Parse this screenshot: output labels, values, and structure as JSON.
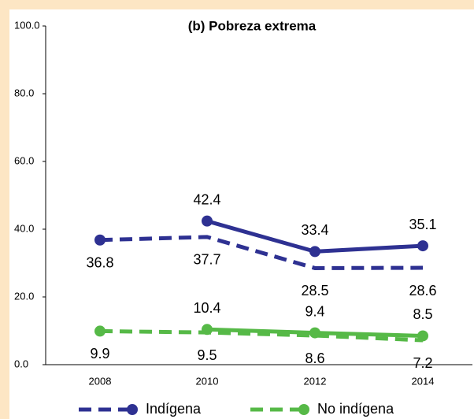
{
  "chart_data": {
    "type": "line",
    "title": "(b) Pobreza extrema",
    "categories": [
      "2008",
      "2010",
      "2012",
      "2014"
    ],
    "series": [
      {
        "name": "Indígena",
        "color": "#2e3192",
        "dashed": true,
        "values": [
          36.8,
          37.7,
          28.5,
          28.6
        ]
      },
      {
        "color": "#2e3192",
        "dashed": false,
        "values": [
          null,
          42.4,
          33.4,
          35.1
        ]
      },
      {
        "name": "No indígena",
        "color": "#56b947",
        "dashed": true,
        "values": [
          9.9,
          9.5,
          8.6,
          7.2
        ]
      },
      {
        "color": "#56b947",
        "dashed": false,
        "values": [
          null,
          10.4,
          9.4,
          8.5
        ]
      }
    ],
    "ylim": [
      0,
      100
    ],
    "yticks": [
      {
        "value": 0,
        "label": "0.0"
      },
      {
        "value": 20,
        "label": "20.0"
      },
      {
        "value": 40,
        "label": "40.0"
      },
      {
        "value": 60,
        "label": "60.0"
      },
      {
        "value": 80,
        "label": "80.0"
      },
      {
        "value": 100,
        "label": "100.0"
      }
    ],
    "legend": "bottom"
  }
}
